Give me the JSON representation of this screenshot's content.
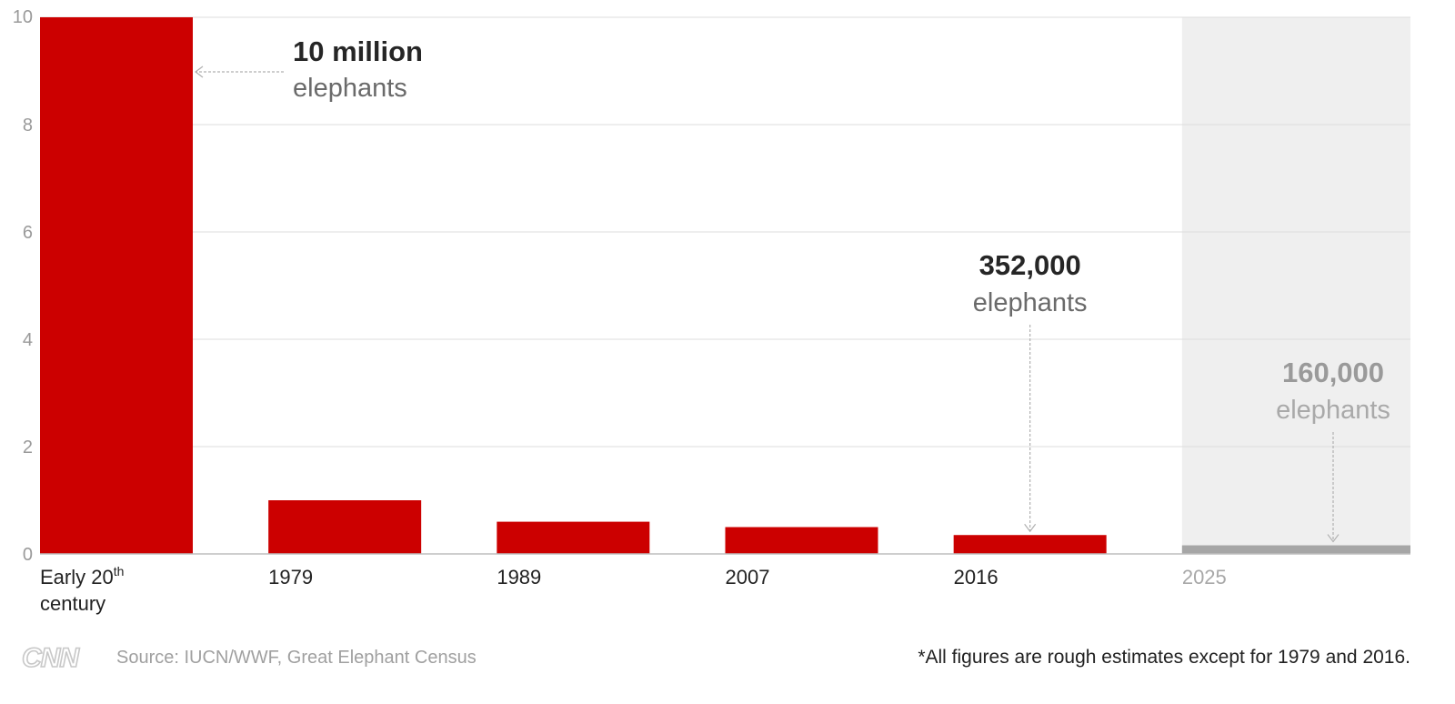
{
  "chart_data": {
    "type": "bar",
    "categories": [
      "Early 20th century",
      "1979",
      "1989",
      "2007",
      "2016",
      "2025"
    ],
    "category_labels": [
      {
        "line1": "Early 20",
        "sup": "th",
        "line2": "century"
      },
      {
        "line1": "1979"
      },
      {
        "line1": "1989"
      },
      {
        "line1": "2007"
      },
      {
        "line1": "2016"
      },
      {
        "line1": "2025"
      }
    ],
    "values": [
      10,
      1.0,
      0.6,
      0.5,
      0.352,
      0.16
    ],
    "projected_index": 5,
    "ylim": [
      0,
      10
    ],
    "yticks": [
      0,
      2,
      4,
      6,
      8,
      10
    ],
    "grid": true,
    "colors": {
      "bar": "#cc0000",
      "projected_bar": "#a6a6a6",
      "projected_band": "#efefef",
      "grid": "#dddddd",
      "leader": "#b0b0b0"
    },
    "annotations": [
      {
        "index": 0,
        "value_text": "10 million",
        "unit_text": "elephants"
      },
      {
        "index": 4,
        "value_text": "352,000",
        "unit_text": "elephants"
      },
      {
        "index": 5,
        "value_text": "160,000",
        "unit_text": "elephants"
      }
    ]
  },
  "footer": {
    "logo": "CNN",
    "source": "Source: IUCN/WWF, Great Elephant Census",
    "note": "*All figures are rough estimates except for 1979 and 2016."
  }
}
